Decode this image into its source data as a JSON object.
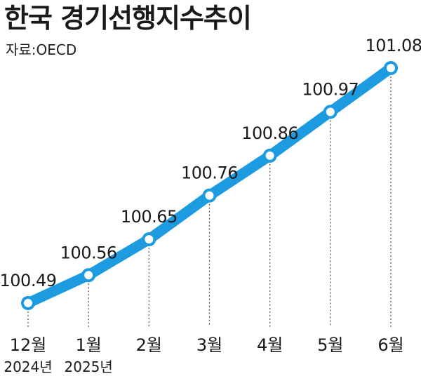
{
  "header": {
    "title": "한국 경기선행지수추이",
    "source": "자료:OECD"
  },
  "colors": {
    "line": "#1c9be0",
    "marker_fill": "#ffffff",
    "guide": "#555555",
    "text": "#1a1a1a"
  },
  "chart_data": {
    "type": "line",
    "title": "한국 경기선행지수추이",
    "source": "자료:OECD",
    "categories": [
      "12월",
      "1월",
      "2월",
      "3월",
      "4월",
      "5월",
      "6월"
    ],
    "year_labels": [
      "2024년",
      "2025년",
      "",
      "",
      "",
      "",
      ""
    ],
    "series": [
      {
        "values": [
          100.49,
          100.56,
          100.65,
          100.76,
          100.86,
          100.97,
          101.08
        ],
        "value_labels": [
          "100.49",
          "100.56",
          "100.65",
          "100.76",
          "100.86",
          "100.97",
          "101.08"
        ]
      }
    ],
    "ylim": [
      100.49,
      101.08
    ],
    "grid": false,
    "legend": "none"
  }
}
